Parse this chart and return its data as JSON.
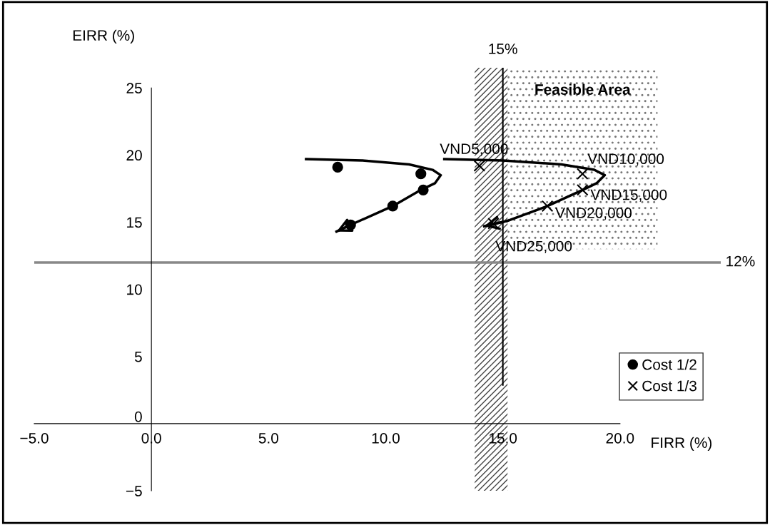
{
  "chart_data": {
    "type": "scatter",
    "xlabel": "FIRR (%)",
    "ylabel": "EIRR (%)",
    "xlim": [
      -5,
      24.3
    ],
    "ylim": [
      -5,
      26.5
    ],
    "xticks": [
      {
        "value": -5,
        "label": "−5.0"
      },
      {
        "value": 0,
        "label": "0.0"
      },
      {
        "value": 5,
        "label": "5.0"
      },
      {
        "value": 10,
        "label": "10.0"
      },
      {
        "value": 15,
        "label": "15.0"
      },
      {
        "value": 20,
        "label": "20.0"
      }
    ],
    "yticks": [
      {
        "value": -5,
        "label": "−5"
      },
      0,
      5,
      10,
      15,
      20,
      25
    ],
    "grid": false,
    "legend": "right",
    "series": [
      {
        "name": "Cost 1/2",
        "marker": "circle",
        "color": "#000000",
        "x": [
          7.95,
          11.5,
          11.6,
          10.3,
          8.5
        ],
        "values": [
          19.1,
          18.6,
          17.4,
          16.2,
          14.8
        ]
      },
      {
        "name": "Cost 1/3",
        "marker": "cross",
        "color": "#000000",
        "x": [
          14.0,
          18.4,
          18.4,
          16.9,
          14.6
        ],
        "values": [
          19.2,
          18.6,
          17.4,
          16.2,
          14.9
        ]
      },
      {
        "type": "line",
        "color": "#000000",
        "line_style": "solid",
        "marker": "none",
        "x": [
          6.6,
          9.0,
          11.0,
          12.0,
          12.35,
          12.1,
          11.5,
          10.3,
          8.5,
          7.9
        ],
        "values": [
          19.7,
          19.6,
          19.3,
          18.9,
          18.5,
          17.9,
          17.4,
          16.2,
          14.8,
          14.3
        ]
      },
      {
        "type": "line",
        "color": "#000000",
        "line_style": "solid",
        "marker": "none",
        "x": [
          12.5,
          15.0,
          17.5,
          18.9,
          19.35,
          19.0,
          18.4,
          16.9,
          15.2,
          14.2
        ],
        "values": [
          19.7,
          19.6,
          19.3,
          18.9,
          18.5,
          17.9,
          17.4,
          16.2,
          15.1,
          14.7
        ]
      }
    ],
    "ref_lines": [
      {
        "axis": "y",
        "value": 12,
        "label": "12%",
        "color": "#888888"
      },
      {
        "axis": "x",
        "value": 15,
        "label": "15%",
        "color": "#000000"
      }
    ],
    "bands": [
      {
        "axis": "x",
        "from": 13.8,
        "to": 15.2,
        "label": null
      },
      {
        "axis": "x",
        "from": 15.2,
        "to": 21.6,
        "label": "Feasible Area"
      }
    ],
    "annotations": [
      {
        "text": "VND5,000",
        "x": 14.0,
        "y": 19.2
      },
      {
        "text": "VND10,000",
        "x": 18.4,
        "y": 18.6
      },
      {
        "text": "VND15,000",
        "x": 18.4,
        "y": 17.4
      },
      {
        "text": "VND20,000",
        "x": 16.9,
        "y": 16.2
      },
      {
        "text": "VND25,000",
        "x": 14.6,
        "y": 14.9
      }
    ]
  }
}
